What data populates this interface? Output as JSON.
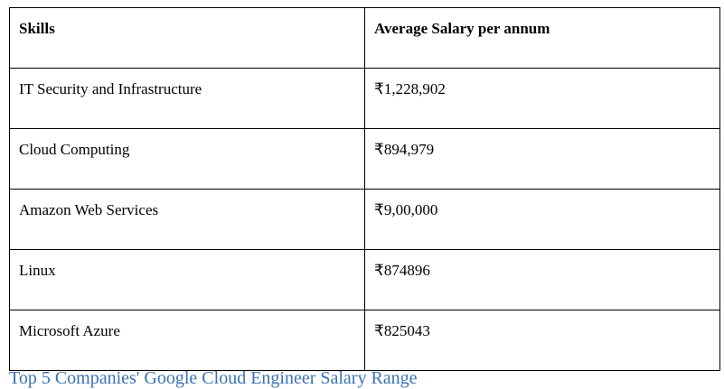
{
  "table": {
    "header": [
      "Skills",
      "Average Salary per annum"
    ],
    "rows": [
      [
        "IT Security and Infrastructure",
        "₹1,228,902"
      ],
      [
        "Cloud Computing",
        "₹894,979"
      ],
      [
        "Amazon Web Services",
        "₹9,00,000"
      ],
      [
        "Linux",
        "₹874896"
      ],
      [
        "Microsoft Azure",
        "₹825043"
      ]
    ]
  },
  "caption": "Top 5 Companies' Google Cloud Engineer Salary Range"
}
